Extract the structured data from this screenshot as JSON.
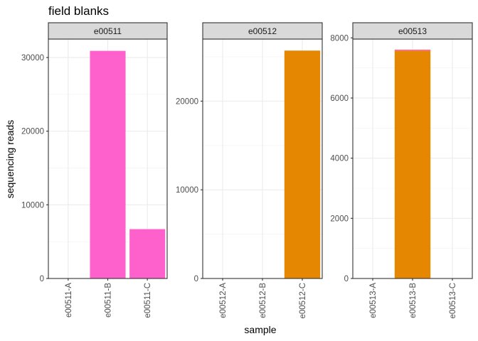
{
  "chart_data": {
    "type": "bar",
    "title": "field blanks",
    "xlabel": "sample",
    "ylabel": "sequencing reads",
    "grid": true,
    "colors": {
      "pink": "#ff61cc",
      "orange": "#e58700"
    },
    "panels": [
      {
        "name": "e00511",
        "categories": [
          "e00511-A",
          "e00511-B",
          "e00511-C"
        ],
        "series": [
          {
            "color": "#ff61cc",
            "values": [
              0,
              30900,
              6700
            ]
          }
        ],
        "ylim": [
          0,
          32500
        ],
        "yticks": [
          0,
          10000,
          20000,
          30000
        ]
      },
      {
        "name": "e00512",
        "categories": [
          "e00512-A",
          "e00512-B",
          "e00512-C"
        ],
        "series": [
          {
            "color": "#e58700",
            "values": [
              0,
              0,
              25700
            ]
          }
        ],
        "ylim": [
          0,
          27000
        ],
        "yticks": [
          0,
          10000,
          20000
        ]
      },
      {
        "name": "e00513",
        "categories": [
          "e00513-A",
          "e00513-B",
          "e00513-C"
        ],
        "series": [
          {
            "color": "#e58700",
            "values": [
              0,
              7580,
              0
            ]
          },
          {
            "color": "#ff61cc",
            "values": [
              0,
              30,
              0
            ]
          }
        ],
        "ylim": [
          0,
          7960
        ],
        "yticks": [
          0,
          2000,
          4000,
          6000,
          8000
        ]
      }
    ]
  }
}
